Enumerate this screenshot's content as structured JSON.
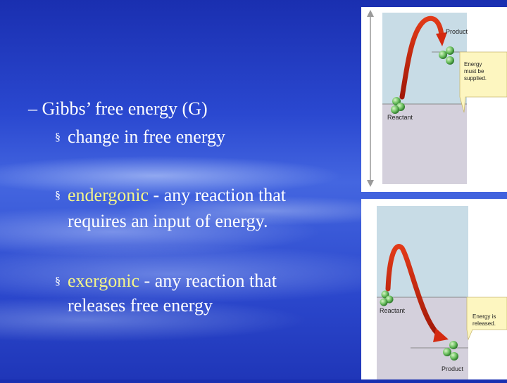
{
  "slide": {
    "line1": "– Gibbs’ free energy (G)",
    "line2": "change in free energy",
    "endergonic_term": "endergonic",
    "endergonic_rest": " - any reaction that",
    "endergonic_cont": "requires an input of energy.",
    "exergonic_term": "exergonic",
    "exergonic_rest": " - any reaction that",
    "exergonic_cont": "releases free energy",
    "bullet_glyph": "§"
  },
  "diagram_top": {
    "product_label": "Product",
    "energy_label_1": "Energy",
    "energy_label_2": "must be",
    "energy_label_3": "supplied.",
    "reactant_label": "Reactant"
  },
  "diagram_bottom": {
    "reactant_label": "Reactant",
    "energy_label_1": "Energy is",
    "energy_label_2": "released.",
    "product_label": "Product"
  },
  "colors": {
    "upper_region": "#c8dce6",
    "lower_region": "#d4d0dc",
    "arrow": "#d42a10",
    "callout": "#fdf6c0",
    "molecule": "#6cc060",
    "text_term": "#f4f58a"
  }
}
